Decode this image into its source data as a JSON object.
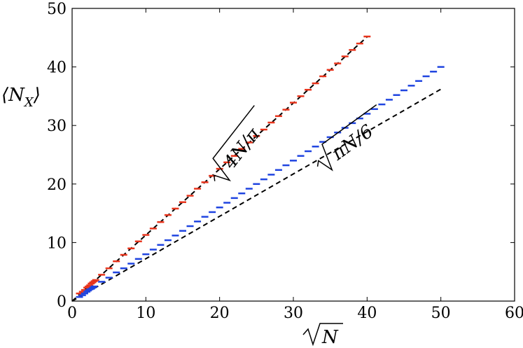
{
  "chart_data": {
    "type": "scatter",
    "title": "",
    "xlabel": "√N",
    "ylabel": "⟨N_X⟩",
    "xlim": [
      0,
      60
    ],
    "ylim": [
      0,
      50
    ],
    "x_ticks": [
      "0",
      "10",
      "20",
      "30",
      "40",
      "50",
      "60"
    ],
    "y_ticks": [
      "0",
      "10",
      "20",
      "30",
      "40",
      "50"
    ],
    "grid": false,
    "legend": "none",
    "series": [
      {
        "color": "#e8341c",
        "marker": "horizontal-dash",
        "x": [
          1,
          1.4,
          1.7,
          2,
          2.2,
          2.4,
          2.6,
          2.8,
          3,
          3.2,
          4,
          5,
          6,
          7,
          8,
          9,
          10,
          11,
          12,
          13,
          14,
          15,
          16,
          17,
          18,
          19,
          20,
          21,
          22,
          23,
          24,
          25,
          26,
          27,
          28,
          29,
          30,
          31,
          32,
          33,
          34,
          35,
          36,
          37,
          38,
          39,
          40
        ],
        "y": [
          1.3,
          1.6,
          1.9,
          2.3,
          2.5,
          2.7,
          3.0,
          3.2,
          3.4,
          3.6,
          4.5,
          5.6,
          6.8,
          7.9,
          9.0,
          10.2,
          11.3,
          12.4,
          13.5,
          14.7,
          15.8,
          16.9,
          18.0,
          19.2,
          20.3,
          21.4,
          22.6,
          23.7,
          24.8,
          26.0,
          27.1,
          28.2,
          29.3,
          30.5,
          31.6,
          32.7,
          33.9,
          35.0,
          36.1,
          37.2,
          38.4,
          39.5,
          40.6,
          41.8,
          42.9,
          44.0,
          45.2
        ]
      },
      {
        "color": "#1f44e0",
        "marker": "horizontal-dash",
        "x": [
          1,
          1.4,
          1.7,
          2,
          2.2,
          2.4,
          2.6,
          2.8,
          3,
          4,
          5,
          6,
          7,
          8,
          9,
          10,
          11,
          12,
          13,
          14,
          15,
          16,
          17,
          18,
          19,
          20,
          21,
          22,
          23,
          24,
          25,
          26,
          27,
          28,
          29,
          30,
          31,
          32,
          33,
          34,
          35,
          36,
          37,
          38,
          39,
          40,
          41,
          42,
          43,
          44,
          45,
          46,
          47,
          48,
          49,
          50
        ],
        "y": [
          0.7,
          1.0,
          1.3,
          1.6,
          1.8,
          2.0,
          2.1,
          2.3,
          2.5,
          3.3,
          4.0,
          4.9,
          5.6,
          6.4,
          7.2,
          8.0,
          8.8,
          9.6,
          10.4,
          11.2,
          12.0,
          12.8,
          13.6,
          14.4,
          15.2,
          16.0,
          16.8,
          17.6,
          18.4,
          19.2,
          20.0,
          20.8,
          21.6,
          22.4,
          23.2,
          24.0,
          24.8,
          25.6,
          26.4,
          27.2,
          28.0,
          28.8,
          29.6,
          30.4,
          31.2,
          32.0,
          32.8,
          33.6,
          34.4,
          35.2,
          36.0,
          36.8,
          37.6,
          38.4,
          39.2,
          40.0
        ]
      }
    ],
    "fit_lines": [
      {
        "color": "#000000",
        "style": "dashed",
        "slope": 1.128,
        "x_range": [
          0,
          40
        ]
      },
      {
        "color": "#000000",
        "style": "dashed",
        "slope": 0.724,
        "x_range": [
          0,
          50
        ]
      }
    ],
    "annotations": [
      {
        "text_radicand": "4N/π",
        "at_x": 23,
        "at_y": 26
      },
      {
        "text_radicand": "πN/6",
        "at_x": 38,
        "at_y": 27
      }
    ]
  }
}
